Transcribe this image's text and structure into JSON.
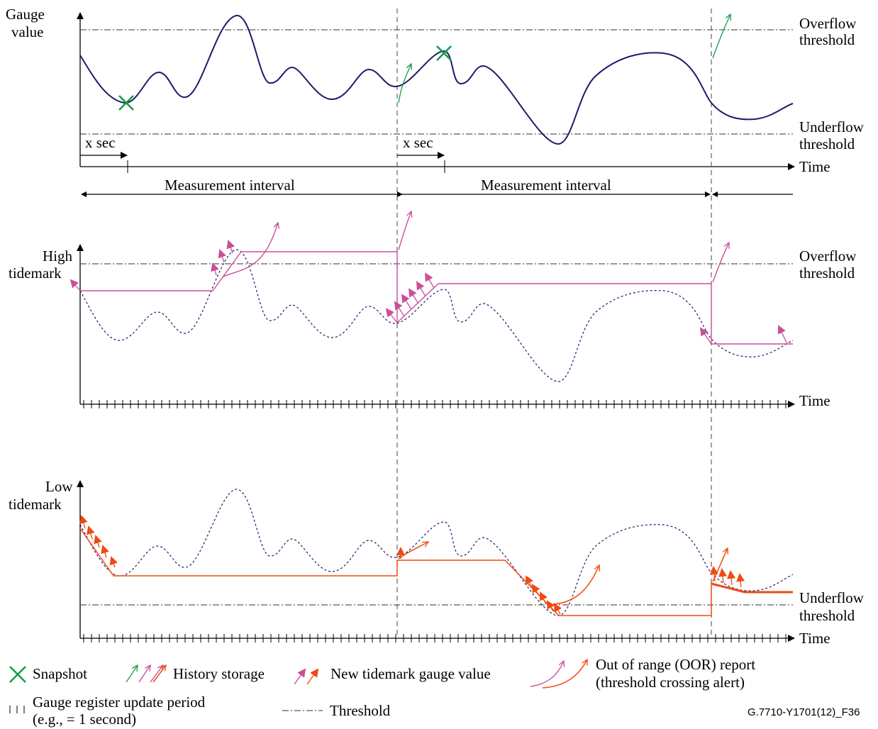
{
  "panel1": {
    "ylabel_line1": "Gauge",
    "ylabel_line2": "value",
    "overflow_line1": "Overflow",
    "overflow_line2": "threshold",
    "underflow_line1": "Underflow",
    "underflow_line2": "threshold",
    "xsec_1": "x sec",
    "xsec_2": "x sec",
    "time": "Time",
    "interval_1": "Measurement interval",
    "interval_2": "Measurement interval"
  },
  "panel2": {
    "ylabel_line1": "High",
    "ylabel_line2": "tidemark",
    "overflow_line1": "Overflow",
    "overflow_line2": "threshold",
    "time": "Time"
  },
  "panel3": {
    "ylabel_line1": "Low",
    "ylabel_line2": "tidemark",
    "underflow_line1": "Underflow",
    "underflow_line2": "threshold",
    "time": "Time"
  },
  "legend": {
    "snapshot": "Snapshot",
    "history": "History storage",
    "new_tidemark": "New tidemark gauge value",
    "oor_line1": "Out of range (OOR) report",
    "oor_line2": "(threshold crossing alert)",
    "update_line1": "Gauge register update period",
    "update_line2": "(e.g., = 1 second)",
    "threshold": "Threshold"
  },
  "figure_id": "G.7710-Y1701(12)_F36",
  "colors": {
    "gauge": "#1f1a6b",
    "high_tidemark": "#c8509a",
    "low_tidemark": "#f04a12",
    "snapshot": "#1a9a4a"
  }
}
